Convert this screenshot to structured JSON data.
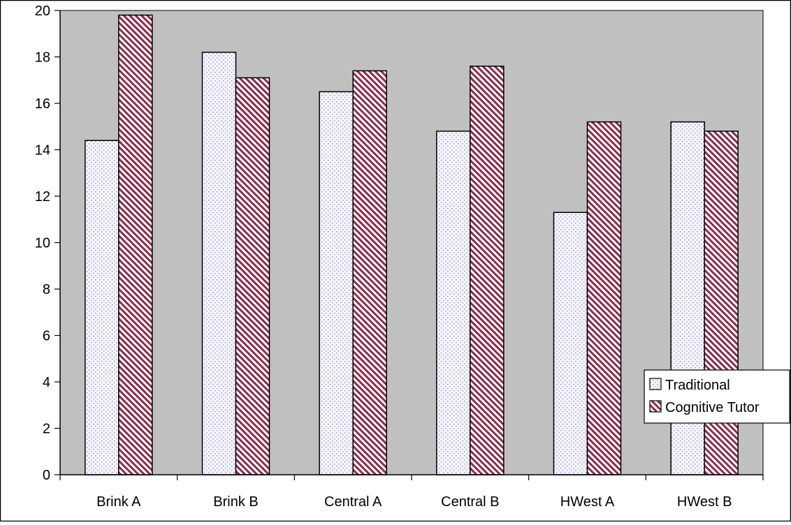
{
  "chart_data": {
    "type": "bar",
    "title": "",
    "xlabel": "",
    "ylabel": "",
    "categories": [
      "Brink A",
      "Brink B",
      "Central A",
      "Central B",
      "HWest A",
      "HWest B"
    ],
    "series": [
      {
        "name": "Traditional",
        "values": [
          14.4,
          18.2,
          16.5,
          14.8,
          11.3,
          15.2
        ],
        "color": "#f4f4fb",
        "dot_color": "#8f8fd0",
        "pattern": "dotted"
      },
      {
        "name": "Cognitive Tutor",
        "values": [
          19.8,
          17.1,
          17.4,
          17.6,
          15.2,
          14.8
        ],
        "color": "#ffffff",
        "stripe_color": "#8b2a4a",
        "pattern": "diagonal-stripes"
      }
    ],
    "ylim": [
      0,
      20
    ],
    "yticks": [
      0,
      2,
      4,
      6,
      8,
      10,
      12,
      14,
      16,
      18,
      20
    ],
    "ytick_labels": [
      "0",
      "2",
      "4",
      "6",
      "8",
      "10",
      "12",
      "14",
      "16",
      "18",
      "20"
    ],
    "grid": false,
    "legend_position": "right",
    "plot_background": "#c0c0c0"
  }
}
